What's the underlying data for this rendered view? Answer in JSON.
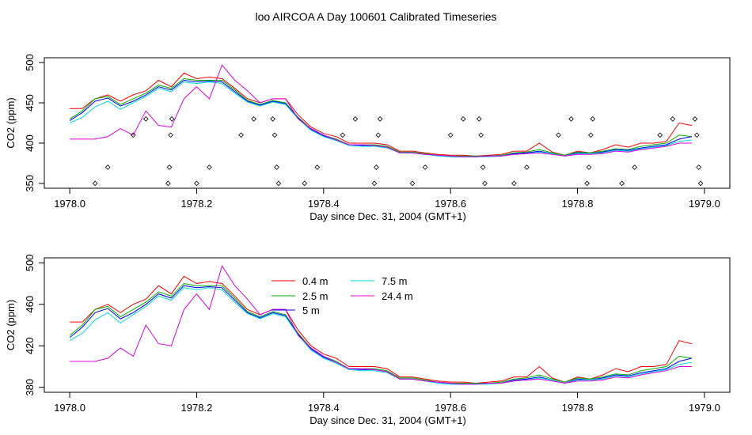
{
  "page_title": "loo AIRCOA A  Day 100601  Calibrated Timeseries",
  "chart_data": [
    {
      "type": "line",
      "xlabel": "Day since Dec. 31, 2004 (GMT+1)",
      "ylabel": "CO2 (ppm)",
      "xlim": [
        1978.0,
        1979.0
      ],
      "ylim": [
        350,
        500
      ],
      "x_ticks": [
        "1978.0",
        "1978.2",
        "1978.4",
        "1978.6",
        "1978.8",
        "1979.0"
      ],
      "y_ticks": [
        "350",
        "400",
        "450",
        "500"
      ],
      "grid": false,
      "legend": null,
      "x": [
        1978.0,
        1978.02,
        1978.04,
        1978.06,
        1978.08,
        1978.1,
        1978.12,
        1978.14,
        1978.16,
        1978.18,
        1978.2,
        1978.22,
        1978.24,
        1978.26,
        1978.28,
        1978.3,
        1978.32,
        1978.34,
        1978.36,
        1978.38,
        1978.4,
        1978.42,
        1978.44,
        1978.46,
        1978.48,
        1978.5,
        1978.52,
        1978.54,
        1978.56,
        1978.58,
        1978.6,
        1978.62,
        1978.64,
        1978.66,
        1978.68,
        1978.7,
        1978.72,
        1978.74,
        1978.76,
        1978.78,
        1978.8,
        1978.82,
        1978.84,
        1978.86,
        1978.88,
        1978.9,
        1978.92,
        1978.94,
        1978.96,
        1978.98
      ],
      "series": [
        {
          "name": "0.4 m",
          "color": "#ff0000",
          "values": [
            443,
            443,
            455,
            460,
            452,
            460,
            465,
            478,
            470,
            487,
            480,
            482,
            480,
            468,
            455,
            450,
            455,
            455,
            435,
            420,
            412,
            408,
            400,
            400,
            400,
            398,
            390,
            390,
            388,
            386,
            385,
            385,
            384,
            385,
            386,
            390,
            390,
            400,
            389,
            385,
            390,
            388,
            392,
            398,
            395,
            400,
            400,
            402,
            425,
            422
          ]
        },
        {
          "name": "2.5 m",
          "color": "#00b000",
          "values": [
            430,
            440,
            455,
            458,
            448,
            455,
            462,
            472,
            468,
            480,
            478,
            478,
            478,
            466,
            453,
            448,
            453,
            450,
            432,
            418,
            410,
            405,
            398,
            398,
            398,
            396,
            389,
            389,
            387,
            385,
            384,
            384,
            384,
            384,
            385,
            388,
            389,
            392,
            388,
            385,
            389,
            388,
            390,
            393,
            392,
            396,
            398,
            400,
            410,
            408
          ]
        },
        {
          "name": "5 m",
          "color": "#0000ff",
          "values": [
            428,
            438,
            452,
            456,
            446,
            452,
            460,
            470,
            466,
            478,
            476,
            477,
            476,
            464,
            452,
            447,
            452,
            449,
            431,
            417,
            409,
            404,
            398,
            397,
            397,
            395,
            388,
            388,
            386,
            385,
            383,
            383,
            383,
            384,
            384,
            387,
            388,
            390,
            387,
            384,
            388,
            387,
            389,
            392,
            391,
            394,
            396,
            398,
            405,
            408
          ]
        },
        {
          "name": "7.5 m",
          "color": "#00dddd",
          "values": [
            425,
            432,
            445,
            452,
            442,
            450,
            458,
            468,
            464,
            476,
            474,
            476,
            474,
            462,
            451,
            446,
            451,
            448,
            430,
            416,
            408,
            403,
            397,
            396,
            396,
            394,
            388,
            388,
            386,
            384,
            383,
            383,
            383,
            383,
            384,
            386,
            387,
            389,
            387,
            384,
            387,
            387,
            388,
            391,
            390,
            393,
            395,
            397,
            402,
            404
          ]
        },
        {
          "name": "24.4 m",
          "color": "#e000e0",
          "values": [
            405,
            405,
            405,
            408,
            418,
            410,
            440,
            422,
            420,
            455,
            470,
            455,
            497,
            478,
            465,
            450,
            455,
            455,
            430,
            418,
            410,
            404,
            398,
            398,
            397,
            395,
            388,
            388,
            386,
            385,
            384,
            383,
            383,
            384,
            384,
            386,
            387,
            388,
            386,
            384,
            386,
            386,
            387,
            390,
            389,
            392,
            394,
            396,
            400,
            400
          ]
        }
      ],
      "scatter": {
        "name": "",
        "color": "#000000",
        "points": [
          [
            1978.04,
            350
          ],
          [
            1978.06,
            370
          ],
          [
            1978.1,
            410
          ],
          [
            1978.12,
            430
          ],
          [
            1978.155,
            350
          ],
          [
            1978.157,
            370
          ],
          [
            1978.159,
            410
          ],
          [
            1978.161,
            430
          ],
          [
            1978.2,
            350
          ],
          [
            1978.22,
            370
          ],
          [
            1978.27,
            410
          ],
          [
            1978.29,
            430
          ],
          [
            1978.32,
            430
          ],
          [
            1978.323,
            410
          ],
          [
            1978.326,
            370
          ],
          [
            1978.329,
            350
          ],
          [
            1978.37,
            350
          ],
          [
            1978.39,
            370
          ],
          [
            1978.43,
            410
          ],
          [
            1978.45,
            430
          ],
          [
            1978.48,
            350
          ],
          [
            1978.483,
            370
          ],
          [
            1978.486,
            410
          ],
          [
            1978.489,
            430
          ],
          [
            1978.54,
            350
          ],
          [
            1978.56,
            370
          ],
          [
            1978.6,
            410
          ],
          [
            1978.62,
            430
          ],
          [
            1978.645,
            430
          ],
          [
            1978.648,
            410
          ],
          [
            1978.651,
            370
          ],
          [
            1978.654,
            350
          ],
          [
            1978.7,
            350
          ],
          [
            1978.72,
            370
          ],
          [
            1978.77,
            410
          ],
          [
            1978.79,
            430
          ],
          [
            1978.815,
            350
          ],
          [
            1978.818,
            370
          ],
          [
            1978.821,
            410
          ],
          [
            1978.824,
            430
          ],
          [
            1978.87,
            350
          ],
          [
            1978.89,
            370
          ],
          [
            1978.93,
            410
          ],
          [
            1978.95,
            430
          ],
          [
            1978.985,
            430
          ],
          [
            1978.988,
            410
          ],
          [
            1978.991,
            370
          ],
          [
            1978.994,
            350
          ]
        ]
      }
    },
    {
      "type": "line",
      "xlabel": "Day since Dec. 31, 2004 (GMT+1)",
      "ylabel": "CO2 (ppm)",
      "xlim": [
        1978.0,
        1979.0
      ],
      "ylim": [
        380,
        500
      ],
      "x_ticks": [
        "1978.0",
        "1978.2",
        "1978.4",
        "1978.6",
        "1978.8",
        "1979.0"
      ],
      "y_ticks": [
        "380",
        "420",
        "460",
        "500"
      ],
      "grid": false,
      "legend": "top-center",
      "legend_entries": [
        "0.4 m",
        "2.5 m",
        "5 m",
        "7.5 m",
        "24.4 m"
      ],
      "x": [
        1978.0,
        1978.02,
        1978.04,
        1978.06,
        1978.08,
        1978.1,
        1978.12,
        1978.14,
        1978.16,
        1978.18,
        1978.2,
        1978.22,
        1978.24,
        1978.26,
        1978.28,
        1978.3,
        1978.32,
        1978.34,
        1978.36,
        1978.38,
        1978.4,
        1978.42,
        1978.44,
        1978.46,
        1978.48,
        1978.5,
        1978.52,
        1978.54,
        1978.56,
        1978.58,
        1978.6,
        1978.62,
        1978.64,
        1978.66,
        1978.68,
        1978.7,
        1978.72,
        1978.74,
        1978.76,
        1978.78,
        1978.8,
        1978.82,
        1978.84,
        1978.86,
        1978.88,
        1978.9,
        1978.92,
        1978.94,
        1978.96,
        1978.98
      ],
      "series": [
        {
          "name": "0.4 m",
          "color": "#ff0000",
          "values": [
            443,
            443,
            455,
            460,
            452,
            460,
            465,
            478,
            470,
            487,
            480,
            482,
            480,
            468,
            455,
            450,
            455,
            455,
            435,
            420,
            412,
            408,
            400,
            400,
            400,
            398,
            390,
            390,
            388,
            386,
            385,
            385,
            384,
            385,
            386,
            390,
            390,
            400,
            389,
            385,
            390,
            388,
            392,
            398,
            395,
            400,
            400,
            402,
            425,
            422
          ]
        },
        {
          "name": "2.5 m",
          "color": "#00b000",
          "values": [
            430,
            440,
            455,
            458,
            448,
            455,
            462,
            472,
            468,
            480,
            478,
            478,
            478,
            466,
            453,
            448,
            453,
            450,
            432,
            418,
            410,
            405,
            398,
            398,
            398,
            396,
            389,
            389,
            387,
            385,
            384,
            384,
            384,
            384,
            385,
            388,
            389,
            392,
            388,
            385,
            389,
            388,
            390,
            393,
            392,
            396,
            398,
            400,
            410,
            408
          ]
        },
        {
          "name": "5 m",
          "color": "#0000ff",
          "values": [
            428,
            438,
            452,
            456,
            446,
            452,
            460,
            470,
            466,
            478,
            476,
            477,
            476,
            464,
            452,
            447,
            452,
            449,
            431,
            417,
            409,
            404,
            398,
            397,
            397,
            395,
            388,
            388,
            386,
            385,
            383,
            383,
            383,
            384,
            384,
            387,
            388,
            390,
            387,
            384,
            388,
            387,
            389,
            392,
            391,
            394,
            396,
            398,
            405,
            408
          ]
        },
        {
          "name": "7.5 m",
          "color": "#00dddd",
          "values": [
            425,
            432,
            445,
            452,
            442,
            450,
            458,
            468,
            464,
            476,
            474,
            476,
            474,
            462,
            451,
            446,
            451,
            448,
            430,
            416,
            408,
            403,
            397,
            396,
            396,
            394,
            388,
            388,
            386,
            384,
            383,
            383,
            383,
            383,
            384,
            386,
            387,
            389,
            387,
            384,
            387,
            387,
            388,
            391,
            390,
            393,
            395,
            397,
            402,
            404
          ]
        },
        {
          "name": "24.4 m",
          "color": "#e000e0",
          "values": [
            405,
            405,
            405,
            408,
            418,
            410,
            440,
            422,
            420,
            455,
            470,
            455,
            497,
            478,
            465,
            450,
            455,
            455,
            430,
            418,
            410,
            404,
            398,
            398,
            397,
            395,
            388,
            388,
            386,
            385,
            384,
            383,
            383,
            384,
            384,
            386,
            387,
            388,
            386,
            384,
            386,
            386,
            387,
            390,
            389,
            392,
            394,
            396,
            400,
            400
          ]
        }
      ]
    }
  ]
}
